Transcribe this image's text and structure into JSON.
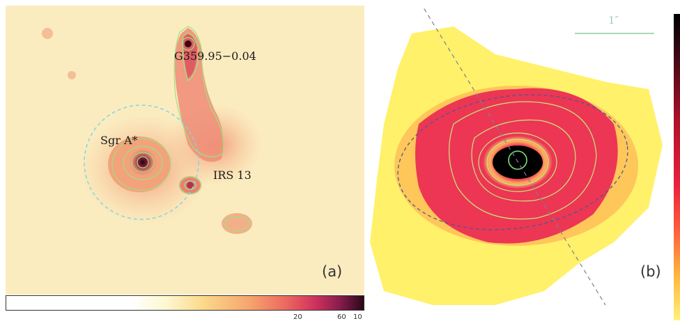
{
  "panel_a": {
    "sources": {
      "g359": "G359.95−0.04",
      "sgra": "Sgr A*",
      "irs13": "IRS 13"
    },
    "panel_label": "(a)",
    "colorbar_ticks": [
      "20",
      "60",
      "10"
    ]
  },
  "panel_b": {
    "scale_bar_label": "1″",
    "panel_label": "(b)"
  },
  "colors": {
    "contour": "#9be37a",
    "dashed_circle": "#7fd6e0",
    "ellipse": "#4a5a8a"
  }
}
